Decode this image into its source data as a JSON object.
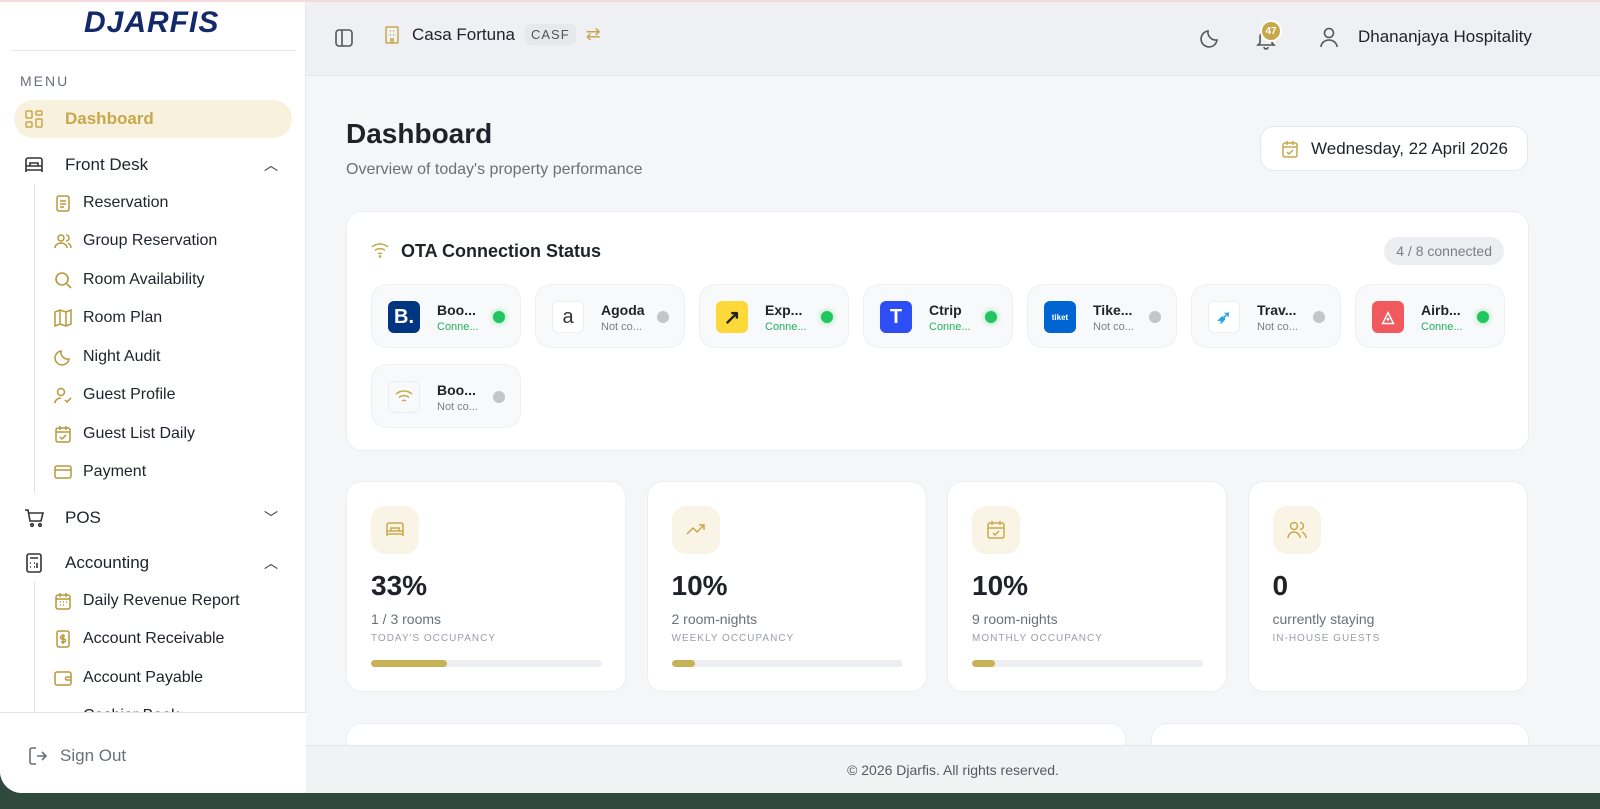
{
  "sidebar": {
    "logo": "DJARFIS",
    "menu_label": "MENU",
    "dashboard": "Dashboard",
    "front_desk": {
      "label": "Front Desk",
      "items": [
        "Reservation",
        "Group Reservation",
        "Room Availability",
        "Room Plan",
        "Night Audit",
        "Guest Profile",
        "Guest List Daily",
        "Payment"
      ]
    },
    "pos": {
      "label": "POS"
    },
    "accounting": {
      "label": "Accounting",
      "items": [
        "Daily Revenue Report",
        "Account Receivable",
        "Account Payable",
        "Cashier Book"
      ]
    },
    "sign_out": "Sign Out"
  },
  "topbar": {
    "property": "Casa Fortuna",
    "property_code": "CASF",
    "notifications": "47",
    "user": "Dhananjaya Hospitality"
  },
  "page": {
    "title": "Dashboard",
    "subtitle": "Overview of today's property performance",
    "date": "Wednesday, 22 April 2026"
  },
  "ota": {
    "title": "OTA Connection Status",
    "badge": "4 / 8 connected",
    "channels": [
      {
        "name": "Boo...",
        "status": "Conne...",
        "connected": true,
        "color": "#003580"
      },
      {
        "name": "Agoda",
        "status": "Not co...",
        "connected": false,
        "color": "#ffffff"
      },
      {
        "name": "Exp...",
        "status": "Conne...",
        "connected": true,
        "color": "#fcd939"
      },
      {
        "name": "Ctrip",
        "status": "Conne...",
        "connected": true,
        "color": "#2d4ef5"
      },
      {
        "name": "Tike...",
        "status": "Not co...",
        "connected": false,
        "color": "#0064d2"
      },
      {
        "name": "Trav...",
        "status": "Not co...",
        "connected": false,
        "color": "#ffffff"
      },
      {
        "name": "Airb...",
        "status": "Conne...",
        "connected": true,
        "color": "#f05a5f"
      },
      {
        "name": "Boo...",
        "status": "Not co...",
        "connected": false,
        "color": "#f8f9fa"
      }
    ]
  },
  "stats": [
    {
      "value": "33%",
      "sub": "1 / 3 rooms",
      "label": "TODAY'S OCCUPANCY",
      "progress": 33
    },
    {
      "value": "10%",
      "sub": "2 room-nights",
      "label": "WEEKLY OCCUPANCY",
      "progress": 10
    },
    {
      "value": "10%",
      "sub": "9 room-nights",
      "label": "MONTHLY OCCUPANCY",
      "progress": 10
    },
    {
      "value": "0",
      "sub": "currently staying",
      "label": "IN-HOUSE GUESTS"
    }
  ],
  "footer": "© 2026 Djarfis. All rights reserved.",
  "colors": {
    "accent": "#c7a94c",
    "connected": "#22c55e"
  }
}
